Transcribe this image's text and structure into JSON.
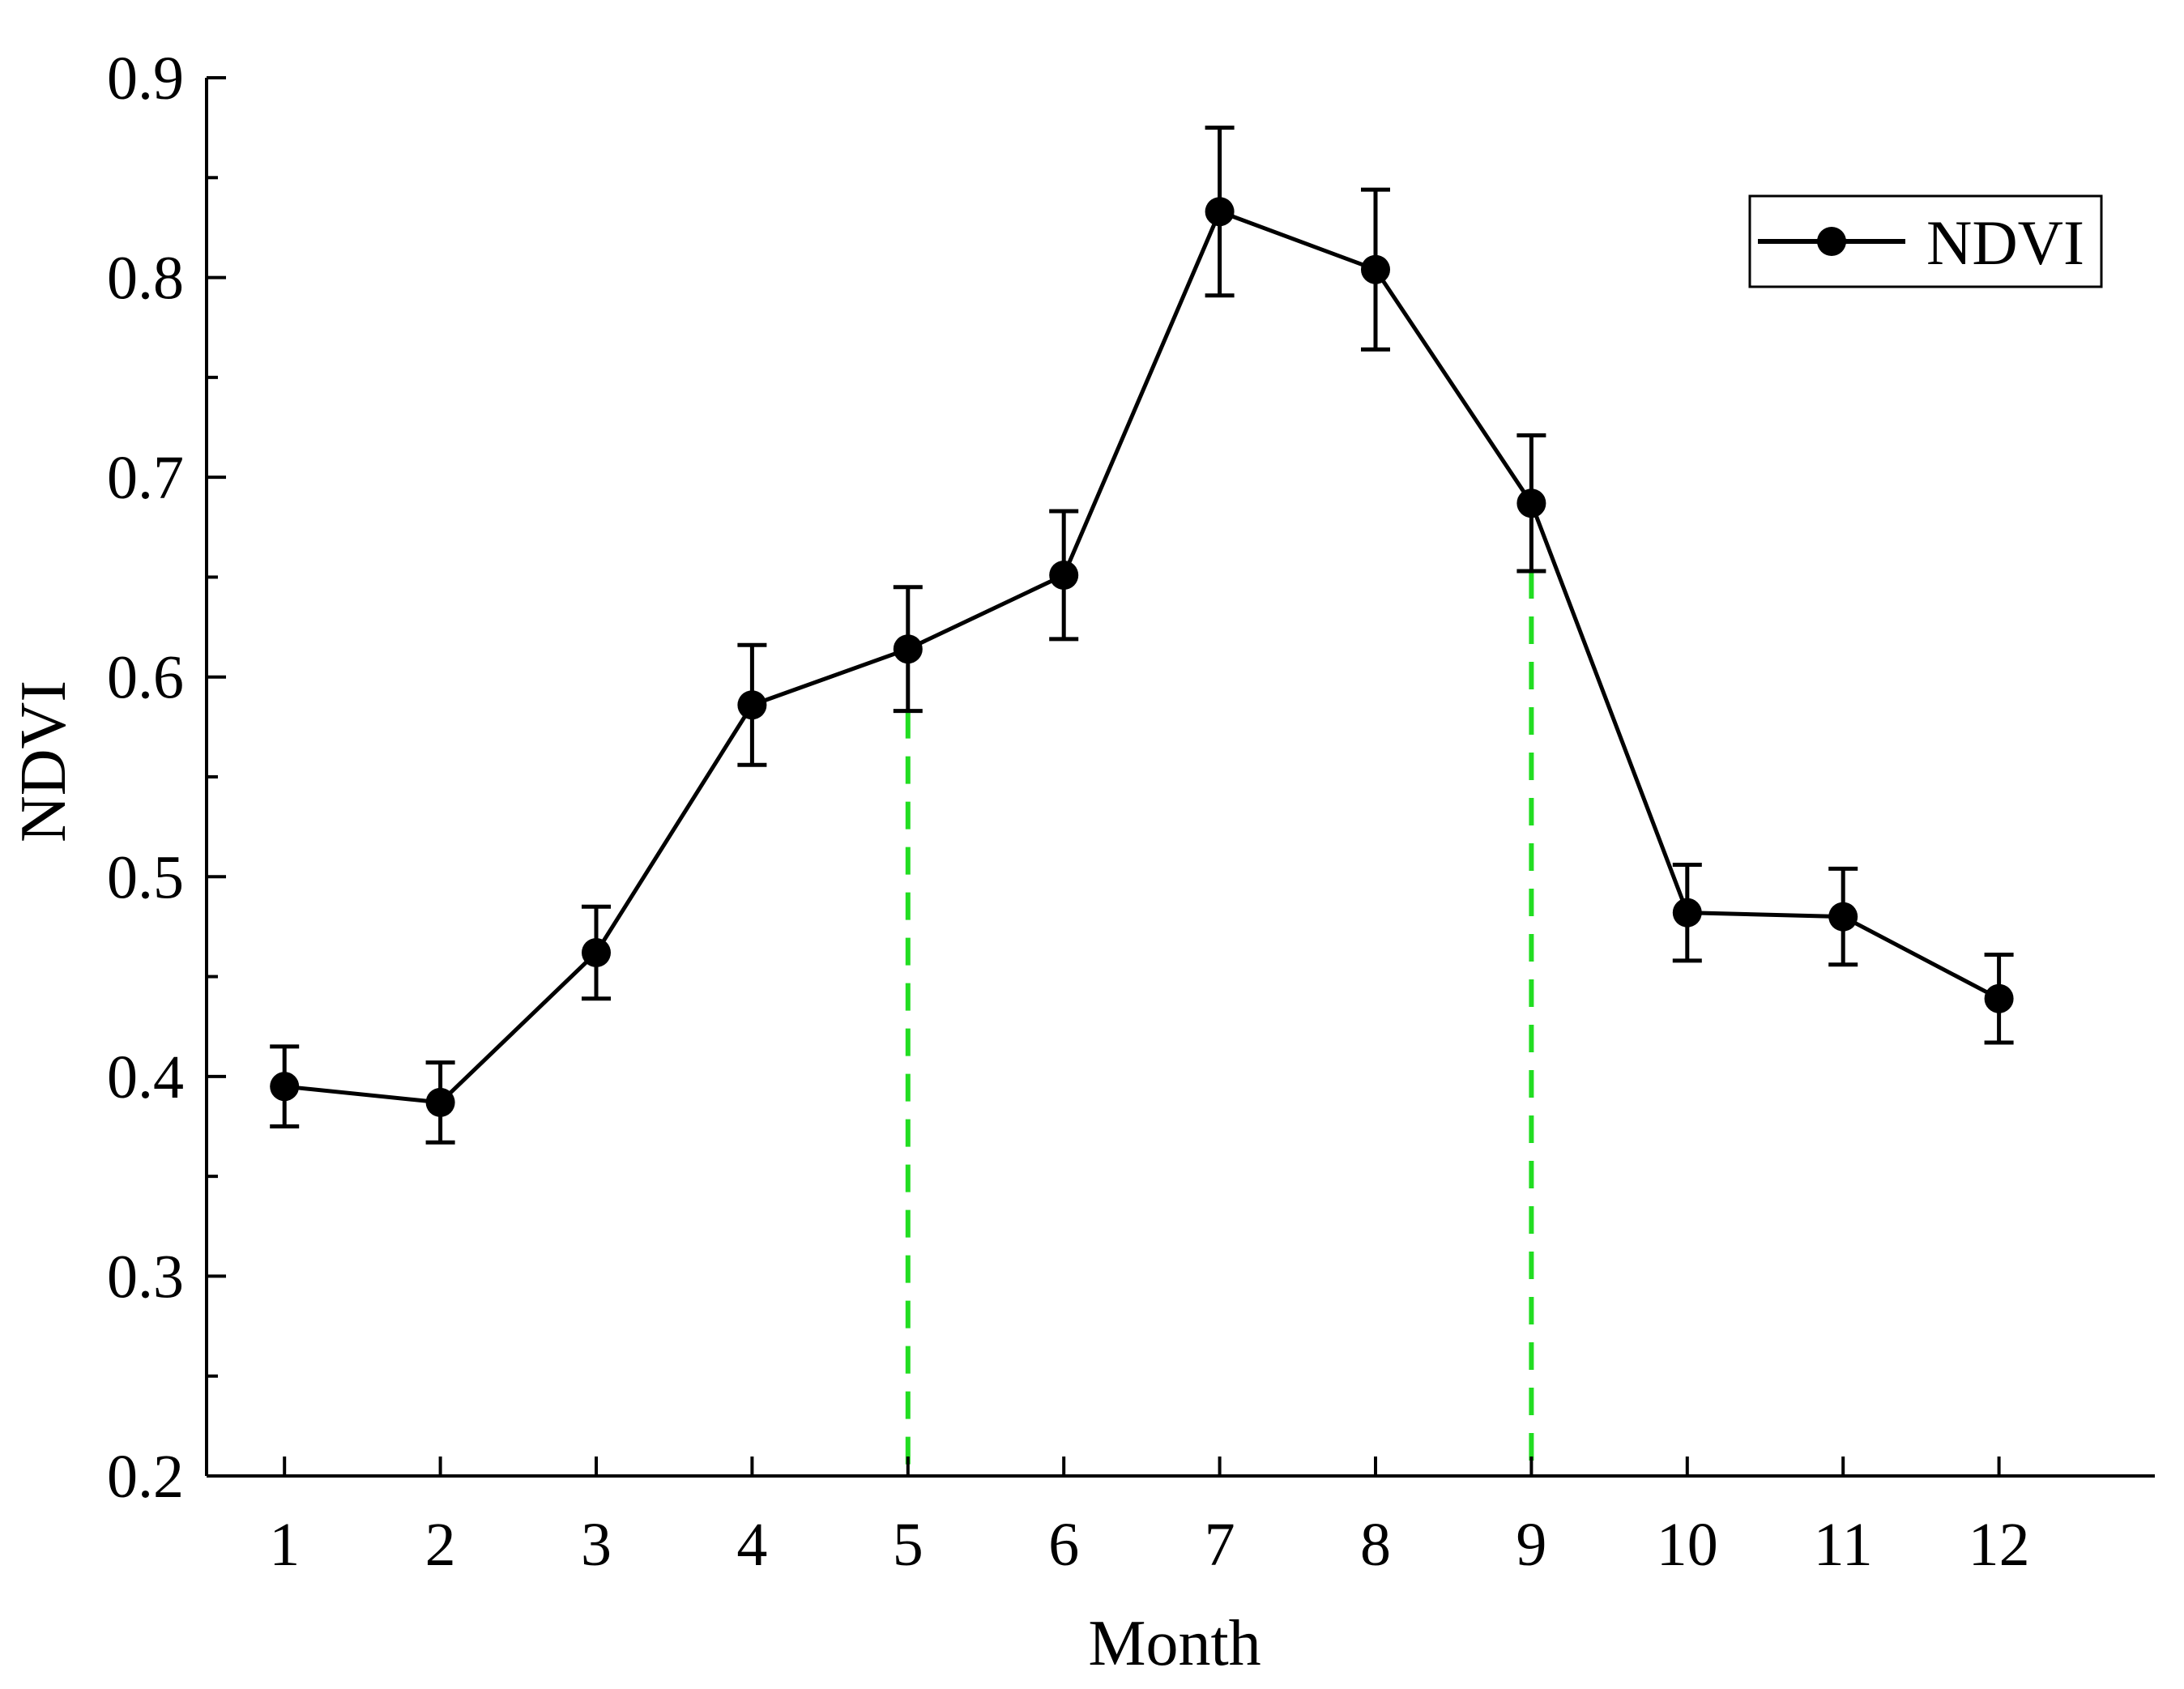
{
  "chart_data": {
    "type": "line",
    "title": "",
    "xlabel": "Month",
    "ylabel": "NDVI",
    "x": [
      1,
      2,
      3,
      4,
      5,
      6,
      7,
      8,
      9,
      10,
      11,
      12
    ],
    "x_tick_labels": [
      "1",
      "2",
      "3",
      "4",
      "5",
      "6",
      "7",
      "8",
      "9",
      "10",
      "11",
      "12"
    ],
    "y_ticks": [
      0.2,
      0.3,
      0.4,
      0.5,
      0.6,
      0.7,
      0.8,
      0.9
    ],
    "y_tick_labels": [
      "0.2",
      "0.3",
      "0.4",
      "0.5",
      "0.6",
      "0.7",
      "0.8",
      "0.9"
    ],
    "xlim": [
      0.5,
      13.0
    ],
    "ylim": [
      0.2,
      0.9
    ],
    "grid": false,
    "series": [
      {
        "name": "NDVI",
        "color": "#000000",
        "marker": "circle",
        "values": [
          0.395,
          0.387,
          0.462,
          0.586,
          0.614,
          0.651,
          0.833,
          0.804,
          0.687,
          0.482,
          0.48,
          0.439
        ],
        "error": [
          0.02,
          0.02,
          0.023,
          0.03,
          0.031,
          0.032,
          0.042,
          0.04,
          0.034,
          0.024,
          0.024,
          0.022
        ]
      }
    ],
    "reference_lines": [
      {
        "x": 5,
        "color": "#22dd22",
        "style": "dashed"
      },
      {
        "x": 9,
        "color": "#22dd22",
        "style": "dashed"
      }
    ],
    "legend": {
      "position": "top-right",
      "entries": [
        "NDVI"
      ]
    }
  }
}
